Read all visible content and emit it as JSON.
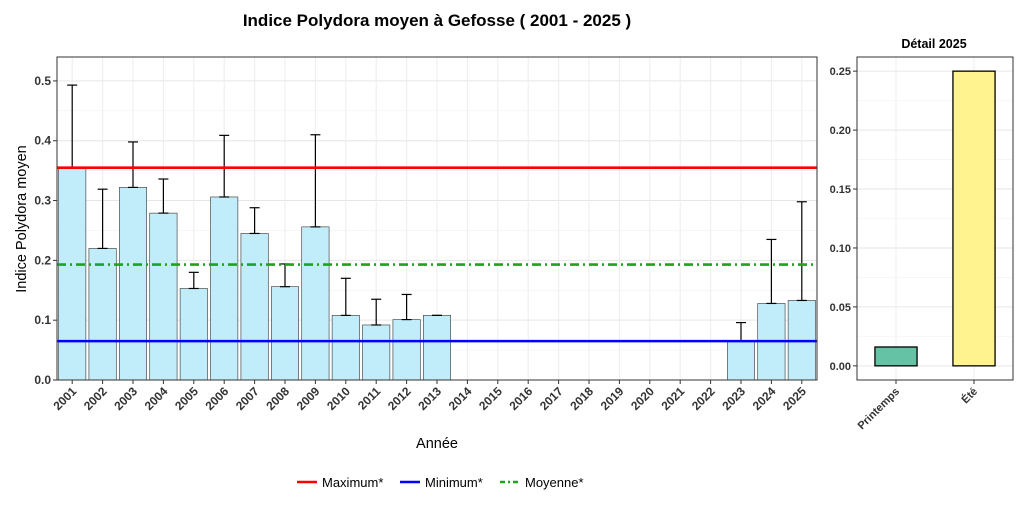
{
  "chart_data": [
    {
      "type": "bar",
      "title": "Indice Polydora moyen à Gefosse ( 2001 - 2025 )",
      "xlabel": "Année",
      "ylabel": "Indice Polydora moyen",
      "ylim": [
        0,
        0.54
      ],
      "yticks": [
        "0.0",
        "0.1",
        "0.2",
        "0.3",
        "0.4",
        "0.5"
      ],
      "categories": [
        "2001",
        "2002",
        "2003",
        "2004",
        "2005",
        "2006",
        "2007",
        "2008",
        "2009",
        "2010",
        "2011",
        "2012",
        "2013",
        "2014",
        "2015",
        "2016",
        "2017",
        "2018",
        "2019",
        "2020",
        "2021",
        "2022",
        "2023",
        "2024",
        "2025"
      ],
      "values": [
        0.355,
        0.22,
        0.322,
        0.279,
        0.153,
        0.306,
        0.245,
        0.156,
        0.256,
        0.108,
        0.092,
        0.101,
        0.108,
        null,
        null,
        null,
        null,
        null,
        null,
        null,
        null,
        null,
        0.065,
        0.128,
        0.133
      ],
      "error_upper": [
        0.493,
        0.319,
        0.398,
        0.336,
        0.18,
        0.409,
        0.288,
        0.194,
        0.41,
        0.17,
        0.135,
        0.143,
        0.108,
        null,
        null,
        null,
        null,
        null,
        null,
        null,
        null,
        null,
        0.096,
        0.235,
        0.298
      ],
      "bar_color": "#c1ecfa",
      "grid": true,
      "reference_lines": [
        {
          "name": "Maximum*",
          "value": 0.355,
          "color": "#ff0000",
          "style": "solid"
        },
        {
          "name": "Minimum*",
          "value": 0.065,
          "color": "#0000ff",
          "style": "solid"
        },
        {
          "name": "Moyenne*",
          "value": 0.193,
          "color": "#22a022",
          "style": "dashdot"
        }
      ],
      "legend_position": "bottom"
    },
    {
      "type": "bar",
      "title": "Détail 2025",
      "ylim": [
        -0.012,
        0.262
      ],
      "yticks": [
        "0.00",
        "0.05",
        "0.10",
        "0.15",
        "0.20",
        "0.25"
      ],
      "categories": [
        "Printemps",
        "Été"
      ],
      "values": [
        0.016,
        0.25
      ],
      "colors": [
        "#66c2a5",
        "#fff38f"
      ],
      "grid": true
    }
  ]
}
